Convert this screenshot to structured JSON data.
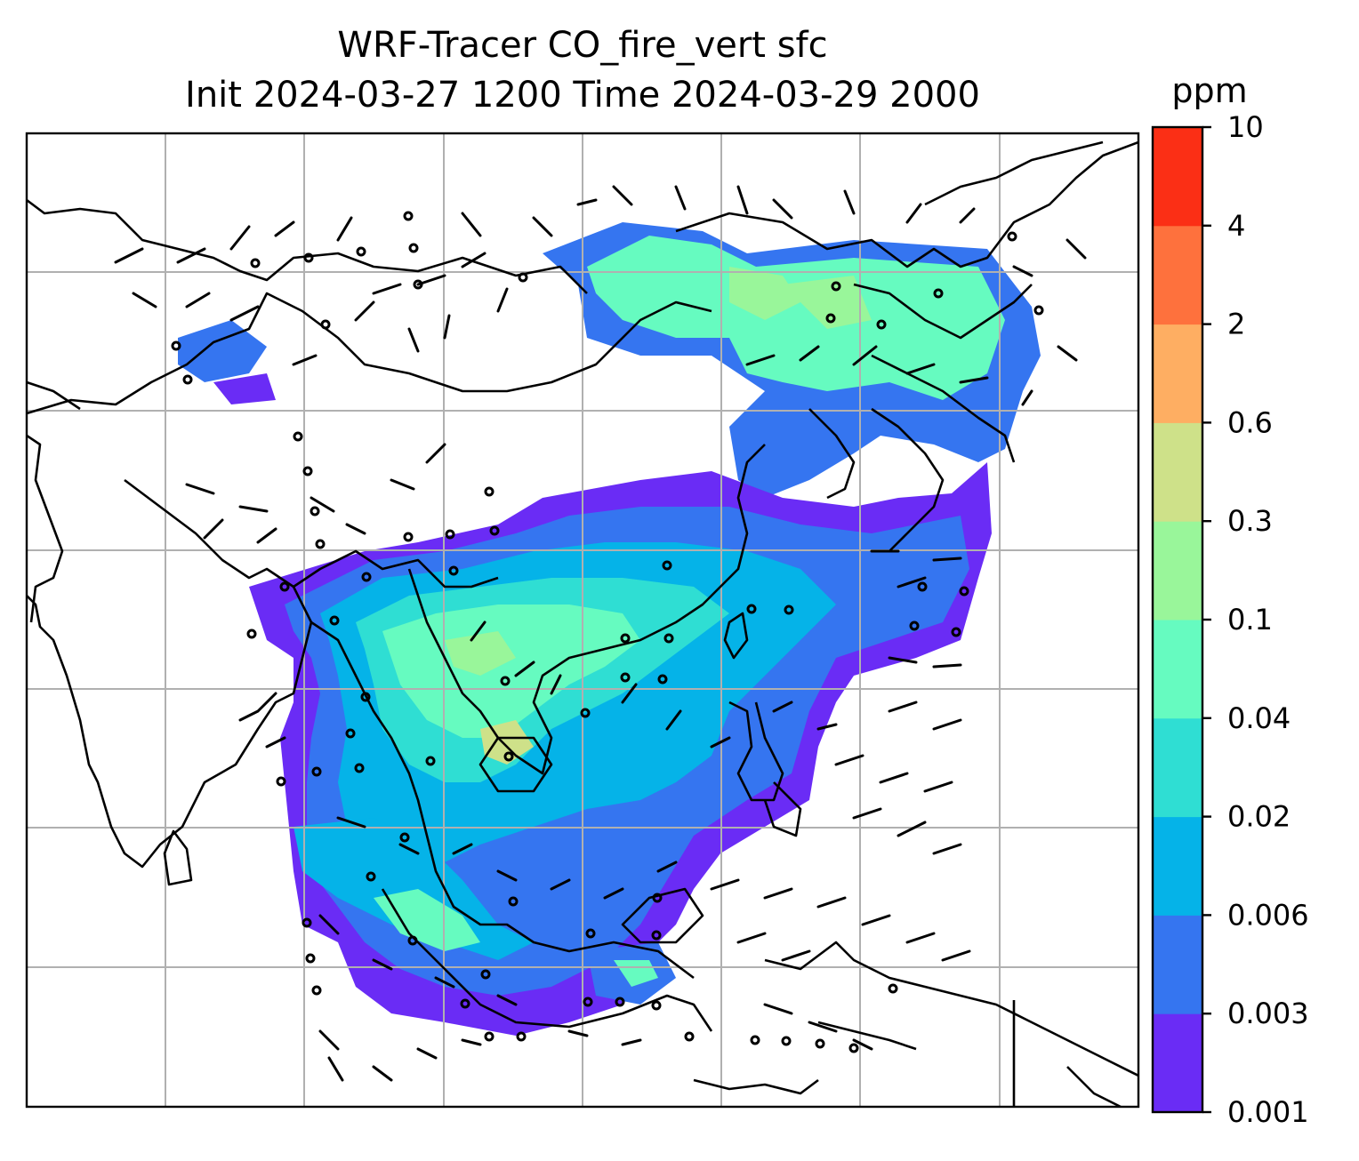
{
  "title_line1": "WRF-Tracer CO_fire_vert sfc",
  "title_line2": "Init 2024-03-27 1200 Time 2024-03-29 2000",
  "colorbar": {
    "units": "ppm",
    "ticks": [
      "0.001",
      "0.003",
      "0.006",
      "0.02",
      "0.04",
      "0.1",
      "0.3",
      "0.6",
      "2",
      "4",
      "10"
    ],
    "colors": [
      "#6a2cf5",
      "#3575f0",
      "#05b3e8",
      "#2fded3",
      "#66fbc0",
      "#99f69a",
      "#cee189",
      "#feae62",
      "#fe713d",
      "#fb2f15"
    ]
  },
  "map": {
    "coastline_color": "#000000",
    "gridline_color": "#b0b0b0"
  }
}
